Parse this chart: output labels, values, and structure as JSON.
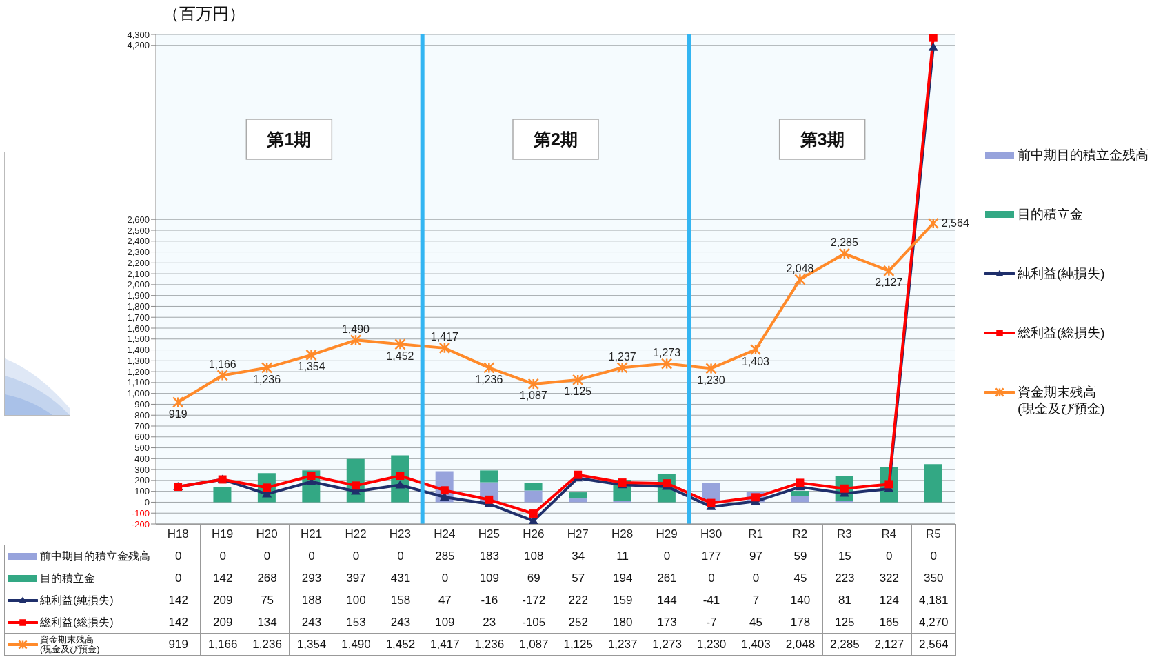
{
  "chart_data": {
    "type": "bar",
    "ylabel": "（百万円）",
    "stacked": true,
    "grid": "y",
    "legend": "right",
    "categories": [
      "H18",
      "H19",
      "H20",
      "H21",
      "H22",
      "H23",
      "H24",
      "H25",
      "H26",
      "H27",
      "H28",
      "H29",
      "H30",
      "R1",
      "R2",
      "R3",
      "R4",
      "R5"
    ],
    "series": [
      {
        "name": "前中期目的積立金残高",
        "color": "#97a3dc",
        "values": [
          0,
          0,
          0,
          0,
          0,
          0,
          285,
          183,
          108,
          34,
          11,
          0,
          177,
          97,
          59,
          15,
          0,
          0
        ],
        "value_labels": [
          "0",
          "0",
          "0",
          "0",
          "0",
          "0",
          "285",
          "183",
          "108",
          "34",
          "11",
          "0",
          "177",
          "97",
          "59",
          "15",
          "0",
          "0"
        ]
      },
      {
        "name": "目的積立金",
        "color": "#33a884",
        "values": [
          0,
          142,
          268,
          293,
          397,
          431,
          0,
          109,
          69,
          57,
          194,
          261,
          0,
          0,
          45,
          223,
          322,
          350
        ],
        "value_labels": [
          "0",
          "142",
          "268",
          "293",
          "397",
          "431",
          "0",
          "109",
          "69",
          "57",
          "194",
          "261",
          "0",
          "0",
          "45",
          "223",
          "322",
          "350"
        ]
      },
      {
        "name": "純利益(純損失)",
        "type": "line",
        "color": "#1f2f6b",
        "marker": "triangle",
        "values": [
          142,
          209,
          75,
          188,
          100,
          158,
          47,
          -16,
          -172,
          222,
          159,
          144,
          -41,
          7,
          140,
          81,
          124,
          4181
        ],
        "value_labels": [
          "142",
          "209",
          "75",
          "188",
          "100",
          "158",
          "47",
          "-16",
          "-172",
          "222",
          "159",
          "144",
          "-41",
          "7",
          "140",
          "81",
          "124",
          "4,181"
        ]
      },
      {
        "name": "総利益(総損失)",
        "type": "line",
        "color": "#ff0000",
        "marker": "square",
        "values": [
          142,
          209,
          134,
          243,
          153,
          243,
          109,
          23,
          -105,
          252,
          180,
          173,
          -7,
          45,
          178,
          125,
          165,
          4270
        ],
        "value_labels": [
          "142",
          "209",
          "134",
          "243",
          "153",
          "243",
          "109",
          "23",
          "-105",
          "252",
          "180",
          "173",
          "-7",
          "45",
          "178",
          "125",
          "165",
          "4,270"
        ]
      },
      {
        "name": "資金期末残高\n(現金及び預金)",
        "type": "line",
        "color": "#ff8a2a",
        "marker": "cross",
        "values": [
          919,
          1166,
          1236,
          1354,
          1490,
          1452,
          1417,
          1236,
          1087,
          1125,
          1237,
          1273,
          1230,
          1403,
          2048,
          2285,
          2127,
          2564
        ],
        "value_labels": [
          "919",
          "1,166",
          "1,236",
          "1,354",
          "1,490",
          "1,452",
          "1,417",
          "1,236",
          "1,087",
          "1,125",
          "1,237",
          "1,273",
          "1,230",
          "1,403",
          "2,048",
          "2,285",
          "2,127",
          "2,564"
        ]
      }
    ],
    "ylim": [
      -200,
      4300
    ],
    "yticks": [
      -200,
      -100,
      0,
      100,
      200,
      300,
      400,
      500,
      600,
      700,
      800,
      900,
      {
        "value": 1000,
        "label": "1,000"
      },
      {
        "value": 1100,
        "label": "1,100"
      },
      {
        "value": 1200,
        "label": "1,200"
      },
      {
        "value": 1300,
        "label": "1,300"
      },
      {
        "value": 1400,
        "label": "1,400"
      },
      {
        "value": 1500,
        "label": "1,500"
      },
      {
        "value": 1600,
        "label": "1,600"
      },
      {
        "value": 1700,
        "label": "1,700"
      },
      {
        "value": 1800,
        "label": "1,800"
      },
      {
        "value": 1900,
        "label": "1,900"
      },
      {
        "value": 2000,
        "label": "2,000"
      },
      {
        "value": 2100,
        "label": "2,100"
      },
      {
        "value": 2200,
        "label": "2,200"
      },
      {
        "value": 2300,
        "label": "2,300"
      },
      {
        "value": 2400,
        "label": "2,400"
      },
      {
        "value": 2500,
        "label": "2,500"
      },
      {
        "value": 2600,
        "label": "2,600"
      },
      {
        "value": 4200,
        "label": "4,200"
      },
      {
        "value": 4300,
        "label": "4,300"
      }
    ],
    "bands": [
      {
        "axis": "x",
        "from": "H18",
        "to": "H23",
        "label": "第1期",
        "color": "#33b5f2"
      },
      {
        "axis": "x",
        "from": "H24",
        "to": "H29",
        "label": "第2期",
        "color": "#33b5f2"
      },
      {
        "axis": "x",
        "from": "H30",
        "to": "R5",
        "label": "第3期",
        "color": "#33b5f2"
      }
    ]
  }
}
